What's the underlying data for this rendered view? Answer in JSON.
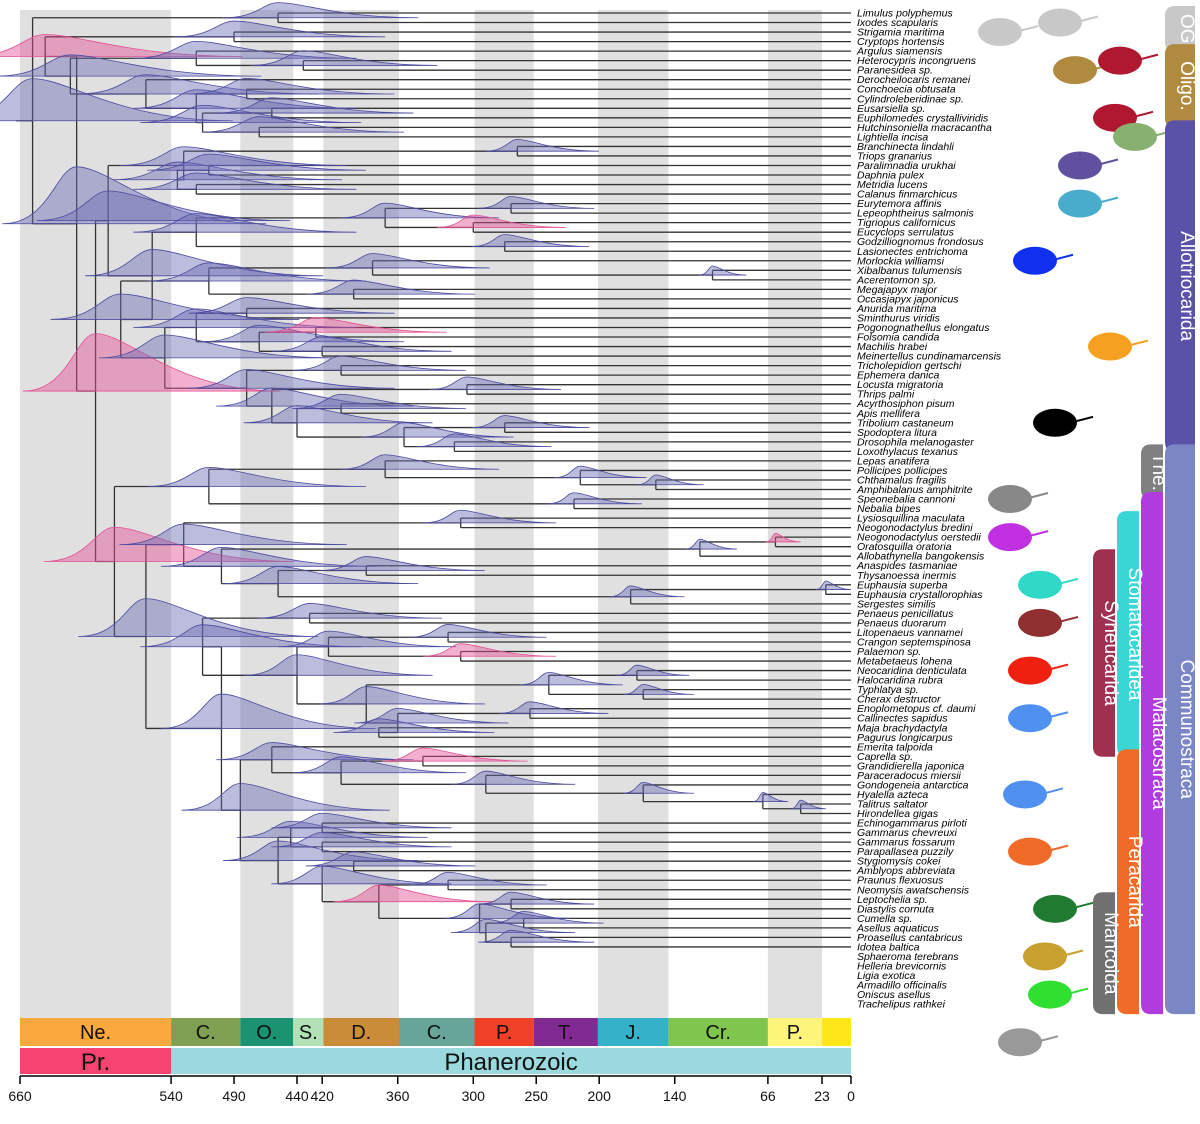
{
  "taxa": [
    "Limulus polyphemus",
    "Ixodes scapularis",
    "Strigamia maritima",
    "Cryptops hortensis",
    "Argulus siamensis",
    "Heterocypris incongruens",
    "Paranesidea sp.",
    "Derocheilocaris remanei",
    "Conchoecia obtusata",
    "Cylindroleberidinae sp.",
    "Eusarsiella sp.",
    "Euphilomedes crystalliviridis",
    "Hutchinsoniella macracantha",
    "Lightiella incisa",
    "Branchinecta lindahli",
    "Triops granarius",
    "Paralimnadia urukhai",
    "Daphnia pulex",
    "Metridia lucens",
    "Calanus finmarchicus",
    "Eurytemora affinis",
    "Lepeophtheirus salmonis",
    "Tigriopus californicus",
    "Eucyclops serrulatus",
    "Godzilliognomus frondosus",
    "Lasionectes entrichoma",
    "Morlockia williamsi",
    "Xibalbanus tulumensis",
    "Acerentomon sp.",
    "Megajapyx major",
    "Occasjapyx japonicus",
    "Anurida maritima",
    "Sminthurus viridis",
    "Pogonognathellus elongatus",
    "Folsomia candida",
    "Machilis hrabei",
    "Meinertellus cundinamarcensis",
    "Tricholepidion gertschi",
    "Ephemera danica",
    "Locusta migratoria",
    "Thrips palmi",
    "Acyrthosiphon pisum",
    "Apis mellifera",
    "Tribolium castaneum",
    "Spodoptera litura",
    "Drosophila melanogaster",
    "Loxothylacus texanus",
    "Lepas anatifera",
    "Pollicipes pollicipes",
    "Chthamalus fragilis",
    "Amphibalanus amphitrite",
    "Speonebalia cannoni",
    "Nebalia bipes",
    "Lysiosquillina maculata",
    "Neogonodactylus bredini",
    "Neogonodactylus oerstedii",
    "Oratosquilla oratoria",
    "Allobathynella bangokensis",
    "Anaspides tasmaniae",
    "Thysanoessa inermis",
    "Euphausia superba",
    "Euphausia crystallorophias",
    "Sergestes similis",
    "Penaeus penicillatus",
    "Penaeus duorarum",
    "Litopenaeus vannamei",
    "Crangon septemspinosa",
    "Palaemon sp.",
    "Metabetaeus lohena",
    "Neocaridina denticulata",
    "Halocaridina rubra",
    "Typhlatya sp.",
    "Cherax destructor",
    "Enoplometopus cf. daumi",
    "Callinectes sapidus",
    "Maja brachydactyla",
    "Pagurus longicarpus",
    "Emerita talpoida",
    "Caprella sp.",
    "Grandidierella japonica",
    "Paraceradocus miersii",
    "Gondogeneia antarctica",
    "Hyalella azteca",
    "Talitrus saltator",
    "Hirondellea gigas",
    "Echinogammarus pirloti",
    "Gammarus chevreuxi",
    "Gammarus fossarum",
    "Parapallasea puzzily",
    "Stygiomysis cokei",
    "Amblyops abbreviata",
    "Praunus flexuosus",
    "Neomysis awatschensis",
    "Leptochelia sp.",
    "Diastylis cornuta",
    "Cumella sp.",
    "Asellus aquaticus",
    "Proasellus cantabricus",
    "Idotea baltica",
    "Sphaeroma terebrans",
    "Helleria brevicornis",
    "Ligia exotica",
    "Armadillo officinalis",
    "Oniscus asellus",
    "Trachelipus rathkei"
  ],
  "periods": [
    {
      "label": "Ne.",
      "start": 660,
      "end": 540,
      "color": "#f9a83d"
    },
    {
      "label": "C.",
      "start": 540,
      "end": 485,
      "color": "#7fa052"
    },
    {
      "label": "O.",
      "start": 485,
      "end": 443,
      "color": "#1b9371"
    },
    {
      "label": "S.",
      "start": 443,
      "end": 419,
      "color": "#b3e1b6"
    },
    {
      "label": "D.",
      "start": 419,
      "end": 359,
      "color": "#cb8c37"
    },
    {
      "label": "C.",
      "start": 359,
      "end": 299,
      "color": "#67a599"
    },
    {
      "label": "P.",
      "start": 299,
      "end": 252,
      "color": "#f04028"
    },
    {
      "label": "T.",
      "start": 252,
      "end": 201,
      "color": "#812b92"
    },
    {
      "label": "J.",
      "start": 201,
      "end": 145,
      "color": "#34b2c9"
    },
    {
      "label": "Cr.",
      "start": 145,
      "end": 66,
      "color": "#7fc64e"
    },
    {
      "label": "P.",
      "start": 66,
      "end": 23,
      "color": "#fdf57a"
    },
    {
      "label": "",
      "start": 23,
      "end": 0,
      "color": "#ffe619"
    }
  ],
  "eras": [
    {
      "label": "Pr.",
      "start": 660,
      "end": 540,
      "color": "#f74370"
    },
    {
      "label": "Phanerozoic",
      "start": 540,
      "end": 0,
      "color": "#9ad9dd"
    }
  ],
  "axis_ticks": [
    660,
    540,
    490,
    440,
    420,
    360,
    300,
    250,
    200,
    140,
    66,
    23,
    0
  ],
  "clades": [
    {
      "label": "OG",
      "first": 0,
      "last": 3,
      "col": 4,
      "color": "#c8c8c8",
      "text_color": "#000000"
    },
    {
      "label": "Oligo.",
      "first": 4,
      "last": 11,
      "col": 4,
      "color": "#b08a3e",
      "text_color": "#ffffff"
    },
    {
      "label": "Allotriocarida",
      "first": 12,
      "last": 45,
      "col": 4,
      "color": "#5a52a8",
      "text_color": "#ffffff"
    },
    {
      "label": "The.",
      "first": 46,
      "last": 50,
      "col": 3,
      "color": "#808080",
      "text_color": "#ffffff"
    },
    {
      "label": "Communostraca",
      "first": 46,
      "last": 104,
      "col": 4,
      "color": "#7b86c5",
      "text_color": "#ffffff"
    },
    {
      "label": "Malacostraca",
      "first": 51,
      "last": 104,
      "col": 3,
      "color": "#b03ce0",
      "text_color": "#ffffff"
    },
    {
      "label": "Stomatocaridea",
      "first": 53,
      "last": 77,
      "col": 2,
      "color": "#3ad6d6",
      "text_color": "#ffffff"
    },
    {
      "label": "Syneucarida",
      "first": 57,
      "last": 77,
      "col": 1,
      "color": "#a03050",
      "text_color": "#ffffff"
    },
    {
      "label": "Peracarida",
      "first": 78,
      "last": 104,
      "col": 2,
      "color": "#f06a28",
      "text_color": "#ffffff"
    },
    {
      "label": "Mancoida",
      "first": 93,
      "last": 104,
      "col": 1,
      "color": "#707070",
      "text_color": "#ffffff"
    }
  ],
  "silhouettes": [
    {
      "name": "horseshoe-crab-icon",
      "row": 2,
      "color": "#c8c8c8"
    },
    {
      "name": "centipede-icon",
      "row": 1,
      "color": "#c8c8c8"
    },
    {
      "name": "argulus-icon",
      "row": 6,
      "color": "#b08a3e"
    },
    {
      "name": "ostracod-icon",
      "row": 5,
      "color": "#b01830"
    },
    {
      "name": "ostracod-2-icon",
      "row": 11,
      "color": "#b01830"
    },
    {
      "name": "remipede-icon",
      "row": 13,
      "color": "#88b070"
    },
    {
      "name": "branchiopod-icon",
      "row": 16,
      "color": "#6050a0"
    },
    {
      "name": "daphnia-icon",
      "row": 20,
      "color": "#4aaccc"
    },
    {
      "name": "copepod-icon",
      "row": 26,
      "color": "#1030f0"
    },
    {
      "name": "myriapod-icon",
      "row": 35,
      "color": "#f5a020"
    },
    {
      "name": "beetle-icon",
      "row": 43,
      "color": "#000000"
    },
    {
      "name": "barnacle-icon",
      "row": 51,
      "color": "#888888"
    },
    {
      "name": "mysid-purple-icon",
      "row": 55,
      "color": "#c030e0"
    },
    {
      "name": "mantis-shrimp-icon",
      "row": 60,
      "color": "#30d8c8"
    },
    {
      "name": "krill-icon",
      "row": 64,
      "color": "#903030"
    },
    {
      "name": "shrimp-red-icon",
      "row": 69,
      "color": "#f02010"
    },
    {
      "name": "shrimp-blue-icon",
      "row": 74,
      "color": "#5090f0"
    },
    {
      "name": "crab-icon",
      "row": 82,
      "color": "#5090f0"
    },
    {
      "name": "amphipod-icon",
      "row": 88,
      "color": "#f06a28"
    },
    {
      "name": "shrimp-green-icon",
      "row": 94,
      "color": "#207a30"
    },
    {
      "name": "tanaid-icon",
      "row": 99,
      "color": "#c8a030"
    },
    {
      "name": "gammarid-icon",
      "row": 103,
      "color": "#30e030"
    },
    {
      "name": "isopod-icon",
      "row": 108,
      "color": "#999999"
    }
  ],
  "colors": {
    "density_blue": "#6a6ab4",
    "density_pink": "#e54f93",
    "grey_band": "#e0e0e0"
  }
}
